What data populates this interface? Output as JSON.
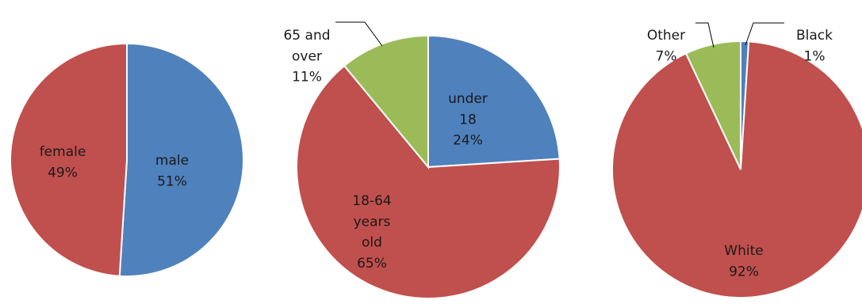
{
  "chart_data": [
    {
      "type": "pie",
      "slices": [
        {
          "label": "male",
          "value": 51,
          "pct_text": "51%",
          "color": "#4f81bd"
        },
        {
          "label": "female",
          "value": 49,
          "pct_text": "49%",
          "color": "#c0504d"
        }
      ]
    },
    {
      "type": "pie",
      "slices": [
        {
          "label": "under 18",
          "value": 24,
          "pct_text": "24%",
          "color": "#4f81bd"
        },
        {
          "label": "18-64 years old",
          "value": 65,
          "pct_text": "65%",
          "color": "#c0504d"
        },
        {
          "label": "65 and over",
          "value": 11,
          "pct_text": "11%",
          "color": "#9bbb59"
        }
      ]
    },
    {
      "type": "pie",
      "slices": [
        {
          "label": "Black",
          "value": 1,
          "pct_text": "1%",
          "color": "#4f81bd"
        },
        {
          "label": "White",
          "value": 92,
          "pct_text": "92%",
          "color": "#c0504d"
        },
        {
          "label": "Other",
          "value": 7,
          "pct_text": "7%",
          "color": "#9bbb59"
        }
      ]
    }
  ]
}
